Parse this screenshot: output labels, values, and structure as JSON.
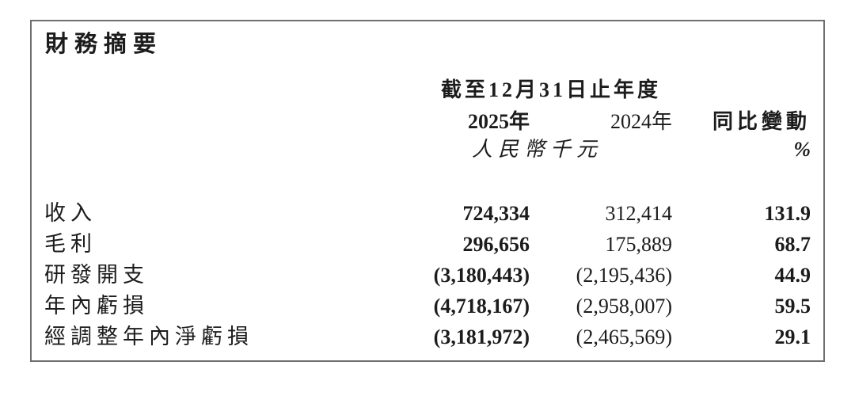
{
  "document": {
    "title": "財務摘要",
    "header": {
      "period": "截至12月31日止年度",
      "columns": {
        "y2025": "2025年",
        "y2024": "2024年",
        "change": "同比變動"
      },
      "unit": "人民幣千元",
      "unit_percent": "%"
    },
    "rows": [
      {
        "label": "收入",
        "v2025": "724,334",
        "v2024": "312,414",
        "change": "131.9"
      },
      {
        "label": "毛利",
        "v2025": "296,656",
        "v2024": "175,889",
        "change": "68.7"
      },
      {
        "label": "研發開支",
        "v2025": "(3,180,443)",
        "v2024": "(2,195,436)",
        "change": "44.9"
      },
      {
        "label": "年內虧損",
        "v2025": "(4,718,167)",
        "v2024": "(2,958,007)",
        "change": "59.5"
      },
      {
        "label": "經調整年內淨虧損",
        "v2025": "(3,181,972)",
        "v2024": "(2,465,569)",
        "change": "29.1"
      }
    ],
    "colors": {
      "text": "#1c1c1c",
      "border": "#6f6f6f",
      "background": "#ffffff"
    }
  }
}
